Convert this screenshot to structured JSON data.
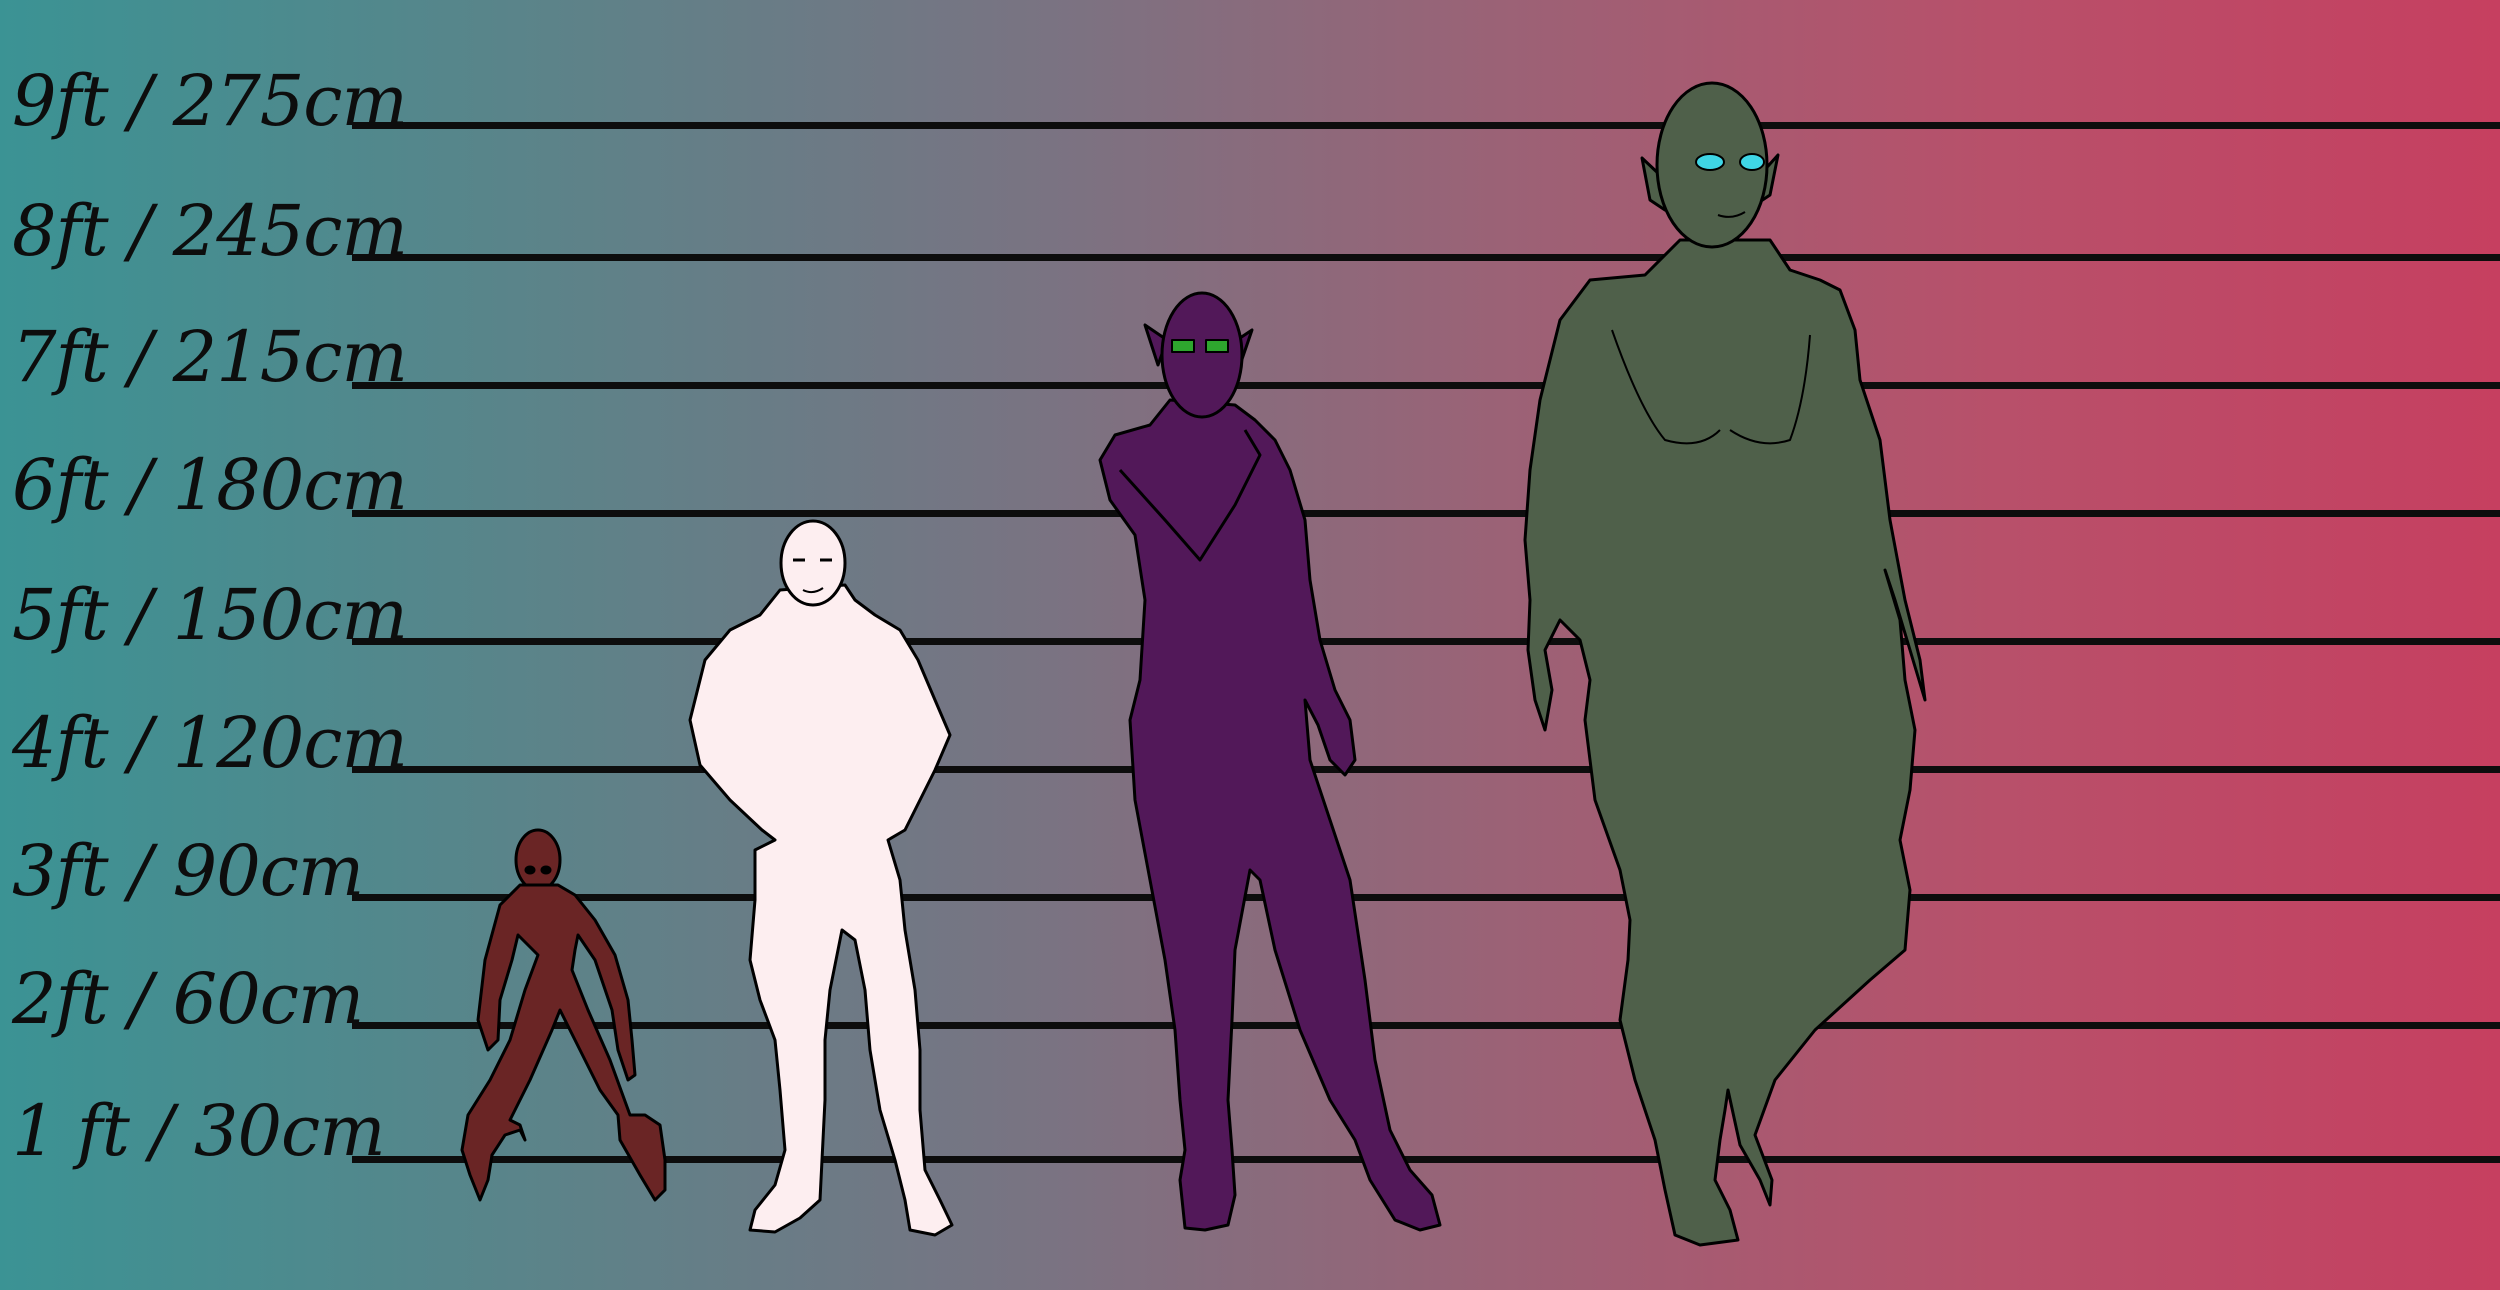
{
  "scale_labels": [
    "9ft / 275cm",
    "8ft / 245cm",
    "7ft / 215cm",
    "6ft / 180cm",
    "5ft / 150cm",
    "4ft / 120cm",
    "3ft / 90cm",
    "2ft / 60cm",
    "1 ft / 30cm"
  ],
  "colors": {
    "background_left": "#3b9394",
    "background_right": "#c63f60",
    "lines": "#0d0d0d",
    "figure_1": "#6a2525",
    "figure_2": "#fdeef0",
    "figure_3": "#521859",
    "figure_4": "#4f604a",
    "eyes_figure_3": "#2ea62e",
    "eyes_figure_4": "#3fd6e6"
  }
}
